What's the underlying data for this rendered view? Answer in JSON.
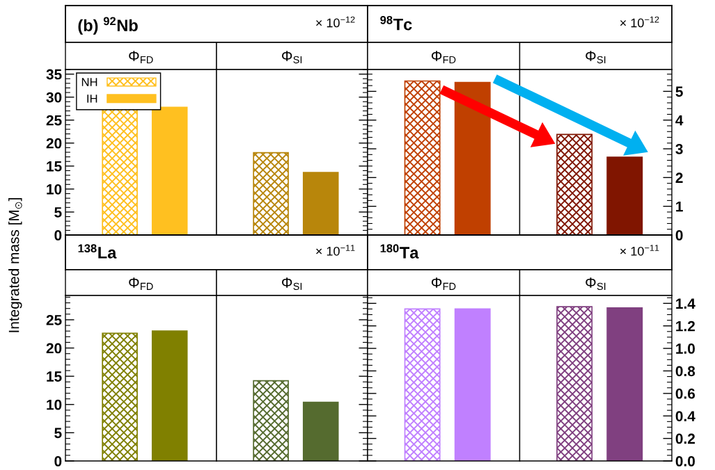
{
  "chart_data": [
    {
      "type": "bar",
      "title": "(b) $^{92}$Nb",
      "annotations": [
        "× 10$^{−12}$"
      ],
      "ylabel": "Integrated mass [M$_{⊙}$]",
      "categories": [
        "Φ$_{FD}$",
        "Φ$_{SI}$"
      ],
      "series": [
        {
          "name": "NH",
          "colors": [
            "#ffc020",
            "#b8860b"
          ],
          "values": [
            27.6,
            17.9
          ]
        },
        {
          "name": "IH",
          "colors": [
            "#ffc020",
            "#b8860b"
          ],
          "values": [
            27.8,
            13.6
          ]
        }
      ],
      "ylim": [
        0,
        36
      ],
      "yticks": [
        0,
        5,
        10,
        15,
        20,
        25,
        30,
        35
      ],
      "legend": "top left"
    },
    {
      "type": "bar",
      "title": "$^{98}$Tc",
      "annotations": [
        "× 10$^{−12}$"
      ],
      "categories": [
        "Φ$_{FD}$",
        "Φ$_{SI}$"
      ],
      "series": [
        {
          "axis": "y2",
          "colors": [
            "#c04000",
            "#801500"
          ],
          "values": [
            5.36,
            3.5
          ]
        },
        {
          "axis": "y2",
          "colors": [
            "#c04000",
            "#801500"
          ],
          "values": [
            5.31,
            2.71
          ]
        }
      ],
      "y2lim": [
        0,
        5.76
      ],
      "y2ticks": [
        0,
        1,
        2,
        3,
        4,
        5
      ]
    },
    {
      "type": "bar",
      "title": "$^{138}$La",
      "annotations": [
        "× 10$^{−11}$"
      ],
      "categories": [
        "Φ$_{FD}$",
        "Φ$_{SI}$"
      ],
      "series": [
        {
          "colors": [
            "#808000",
            "#556b2f"
          ],
          "values": [
            22.6,
            14.2
          ]
        },
        {
          "colors": [
            "#808000",
            "#556b2f"
          ],
          "values": [
            23.0,
            10.4
          ]
        }
      ],
      "ylim": [
        0,
        29.3
      ],
      "yticks": [
        0,
        5,
        10,
        15,
        20,
        25
      ]
    },
    {
      "type": "bar",
      "title": "$^{180}$Ta",
      "annotations": [
        "× 10$^{−11}$"
      ],
      "categories": [
        "Φ$_{FD}$",
        "Φ$_{SI}$"
      ],
      "series": [
        {
          "axis": "y2",
          "colors": [
            "#c080ff",
            "#804080"
          ],
          "values": [
            1.35,
            1.37
          ]
        },
        {
          "axis": "y2",
          "colors": [
            "#c080ff",
            "#804080"
          ],
          "values": [
            1.35,
            1.36
          ]
        }
      ],
      "y2lim": [
        0,
        1.47
      ],
      "y2ticks": [
        {
          "value": 0,
          "label": "0.0"
        },
        0.2,
        0.4,
        0.6,
        0.8,
        {
          "value": 1,
          "label": "1.0"
        },
        1.2,
        1.4
      ]
    }
  ]
}
